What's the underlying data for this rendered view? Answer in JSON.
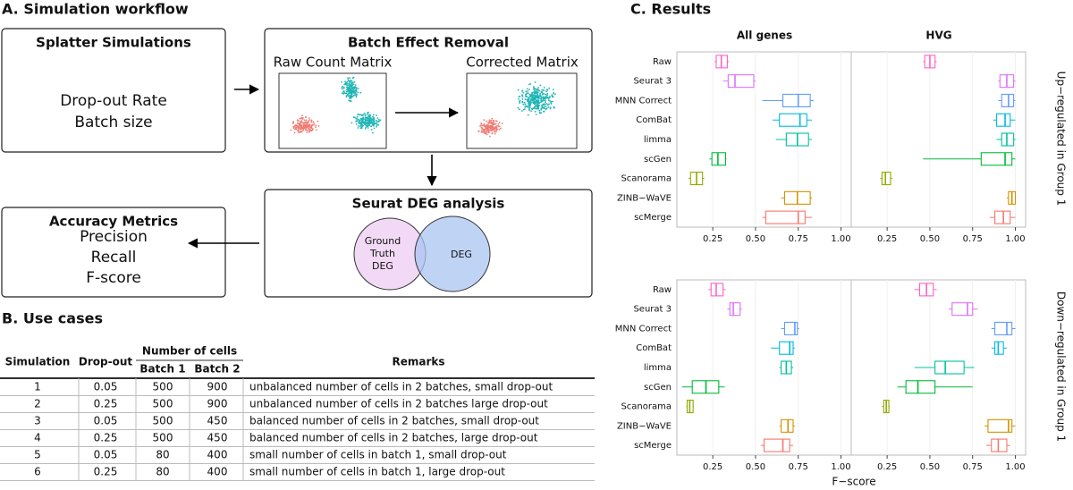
{
  "workflow": {
    "title": "A. Simulation workflow",
    "simulations": {
      "title": "Splatter Simulations",
      "lines": [
        "Drop-out Rate",
        "Batch size"
      ]
    },
    "batch_removal": {
      "title": "Batch Effect Removal",
      "raw": "Raw Count Matrix",
      "corrected": "Corrected Matrix"
    },
    "deg": {
      "title": "Seurat DEG analysis",
      "ground_truth": [
        "Ground",
        "Truth",
        "DEG"
      ],
      "deg": "DEG"
    },
    "metrics": {
      "title": "Accuracy Metrics",
      "lines": [
        "Precision",
        "Recall",
        "F-score"
      ]
    }
  },
  "use_cases": {
    "title": "B. Use cases",
    "header": {
      "simulation": "Simulation",
      "dropout": "Drop-out",
      "cells": "Number of cells",
      "batch1": "Batch 1",
      "batch2": "Batch 2",
      "remarks": "Remarks"
    },
    "rows": [
      [
        "1",
        "0.05",
        "500",
        "900",
        "unbalanced number of cells in 2 batches, small drop-out"
      ],
      [
        "2",
        "0.25",
        "500",
        "900",
        "unbalanced number of cells in 2 batches large drop-out"
      ],
      [
        "3",
        "0.05",
        "500",
        "450",
        "balanced number of cells in 2 batches, small drop-out"
      ],
      [
        "4",
        "0.25",
        "500",
        "450",
        "balanced number of cells in 2 batches, large drop-out"
      ],
      [
        "5",
        "0.05",
        "80",
        "400",
        "small number of cells in batch 1, small drop-out"
      ],
      [
        "6",
        "0.25",
        "80",
        "400",
        "small number of cells in batch 1, large drop-out"
      ]
    ]
  },
  "results": {
    "title": "C. Results",
    "xlabel": "F−score",
    "columns": [
      "All genes",
      "HVG"
    ],
    "rows": [
      "Up−regulated in Group 1",
      "Down−regulated in Group 1"
    ],
    "categories": [
      "Raw",
      "Seurat 3",
      "MNN Correct",
      "ComBat",
      "limma",
      "scGen",
      "Scanorama",
      "ZINB−WaVE",
      "scMerge"
    ],
    "colors": [
      "#ff61c3",
      "#db72fb",
      "#619cff",
      "#00b9e3",
      "#00c19f",
      "#00ba38",
      "#93aa00",
      "#d39200",
      "#f8766d"
    ]
  },
  "chart_data": [
    {
      "type": "box",
      "xlim": [
        0.04,
        1.06
      ],
      "xticks": [
        0.25,
        {
          "value": 0.5,
          "label": "0.50"
        },
        0.75,
        {
          "value": 1,
          "label": "1.00"
        }
      ],
      "boxes": [
        {
          "whisker_low": 0.26,
          "q1": 0.27,
          "median": 0.3,
          "q3": 0.335,
          "whisker_high": 0.345
        },
        {
          "whisker_low": 0.31,
          "q1": 0.34,
          "median": 0.38,
          "q3": 0.49,
          "whisker_high": 0.5
        },
        {
          "whisker_low": 0.54,
          "q1": 0.66,
          "median": 0.75,
          "q3": 0.82,
          "whisker_high": 0.84
        },
        {
          "whisker_low": 0.6,
          "q1": 0.64,
          "median": 0.76,
          "q3": 0.8,
          "whisker_high": 0.83
        },
        {
          "whisker_low": 0.62,
          "q1": 0.68,
          "median": 0.745,
          "q3": 0.81,
          "whisker_high": 0.83
        },
        {
          "whisker_low": 0.23,
          "q1": 0.245,
          "median": 0.28,
          "q3": 0.325,
          "whisker_high": 0.33
        },
        {
          "whisker_low": 0.11,
          "q1": 0.12,
          "median": 0.155,
          "q3": 0.19,
          "whisker_high": 0.2
        },
        {
          "whisker_low": 0.65,
          "q1": 0.67,
          "median": 0.745,
          "q3": 0.82,
          "whisker_high": 0.83
        },
        {
          "whisker_low": 0.54,
          "q1": 0.56,
          "median": 0.75,
          "q3": 0.79,
          "whisker_high": 0.83
        }
      ]
    },
    {
      "type": "box",
      "xlim": [
        0.04,
        1.06
      ],
      "xticks": [
        0.25,
        {
          "value": 0.5,
          "label": "0.50"
        },
        0.75,
        {
          "value": 1,
          "label": "1.00"
        }
      ],
      "boxes": [
        {
          "whisker_low": 0.46,
          "q1": 0.47,
          "median": 0.5,
          "q3": 0.53,
          "whisker_high": 0.54
        },
        {
          "whisker_low": 0.9,
          "q1": 0.91,
          "median": 0.95,
          "q3": 0.99,
          "whisker_high": 1.0
        },
        {
          "whisker_low": 0.9,
          "q1": 0.92,
          "median": 0.96,
          "q3": 0.99,
          "whisker_high": 1.0
        },
        {
          "whisker_low": 0.87,
          "q1": 0.89,
          "median": 0.94,
          "q3": 0.97,
          "whisker_high": 1.0
        },
        {
          "whisker_low": 0.89,
          "q1": 0.92,
          "median": 0.95,
          "q3": 0.99,
          "whisker_high": 1.0
        },
        {
          "whisker_low": 0.46,
          "q1": 0.8,
          "median": 0.94,
          "q3": 0.98,
          "whisker_high": 1.0
        },
        {
          "whisker_low": 0.21,
          "q1": 0.22,
          "median": 0.24,
          "q3": 0.27,
          "whisker_high": 0.28
        },
        {
          "whisker_low": 0.95,
          "q1": 0.96,
          "median": 0.98,
          "q3": 1.0,
          "whisker_high": 1.0
        },
        {
          "whisker_low": 0.85,
          "q1": 0.88,
          "median": 0.93,
          "q3": 0.97,
          "whisker_high": 1.0
        }
      ]
    },
    {
      "type": "box",
      "xlim": [
        0.04,
        1.06
      ],
      "xticks": [
        0.25,
        {
          "value": 0.5,
          "label": "0.50"
        },
        0.75,
        {
          "value": 1,
          "label": "1.00"
        }
      ],
      "boxes": [
        {
          "whisker_low": 0.225,
          "q1": 0.24,
          "median": 0.27,
          "q3": 0.31,
          "whisker_high": 0.325
        },
        {
          "whisker_low": 0.335,
          "q1": 0.35,
          "median": 0.37,
          "q3": 0.41,
          "whisker_high": 0.42
        },
        {
          "whisker_low": 0.65,
          "q1": 0.67,
          "median": 0.73,
          "q3": 0.745,
          "whisker_high": 0.755
        },
        {
          "whisker_low": 0.59,
          "q1": 0.64,
          "median": 0.7,
          "q3": 0.72,
          "whisker_high": 0.73
        },
        {
          "whisker_low": 0.64,
          "q1": 0.65,
          "median": 0.68,
          "q3": 0.71,
          "whisker_high": 0.72
        },
        {
          "whisker_low": 0.07,
          "q1": 0.13,
          "median": 0.21,
          "q3": 0.285,
          "whisker_high": 0.32
        },
        {
          "whisker_low": 0.095,
          "q1": 0.1,
          "median": 0.115,
          "q3": 0.135,
          "whisker_high": 0.14
        },
        {
          "whisker_low": 0.64,
          "q1": 0.65,
          "median": 0.69,
          "q3": 0.72,
          "whisker_high": 0.73
        },
        {
          "whisker_low": 0.53,
          "q1": 0.55,
          "median": 0.66,
          "q3": 0.7,
          "whisker_high": 0.72
        }
      ]
    },
    {
      "type": "box",
      "xlim": [
        0.04,
        1.06
      ],
      "xticks": [
        0.25,
        {
          "value": 0.5,
          "label": "0.50"
        },
        0.75,
        {
          "value": 1,
          "label": "1.00"
        }
      ],
      "boxes": [
        {
          "whisker_low": 0.41,
          "q1": 0.44,
          "median": 0.48,
          "q3": 0.52,
          "whisker_high": 0.54
        },
        {
          "whisker_low": 0.61,
          "q1": 0.63,
          "median": 0.72,
          "q3": 0.75,
          "whisker_high": 0.78
        },
        {
          "whisker_low": 0.86,
          "q1": 0.88,
          "median": 0.95,
          "q3": 0.98,
          "whisker_high": 1.0
        },
        {
          "whisker_low": 0.86,
          "q1": 0.88,
          "median": 0.9,
          "q3": 0.93,
          "whisker_high": 0.95
        },
        {
          "whisker_low": 0.41,
          "q1": 0.53,
          "median": 0.59,
          "q3": 0.7,
          "whisker_high": 0.76
        },
        {
          "whisker_low": 0.31,
          "q1": 0.36,
          "median": 0.43,
          "q3": 0.53,
          "whisker_high": 0.75
        },
        {
          "whisker_low": 0.22,
          "q1": 0.23,
          "median": 0.245,
          "q3": 0.26,
          "whisker_high": 0.265
        },
        {
          "whisker_low": 0.82,
          "q1": 0.84,
          "median": 0.96,
          "q3": 0.98,
          "whisker_high": 1.0
        },
        {
          "whisker_low": 0.83,
          "q1": 0.86,
          "median": 0.9,
          "q3": 0.95,
          "whisker_high": 0.97
        }
      ]
    }
  ]
}
